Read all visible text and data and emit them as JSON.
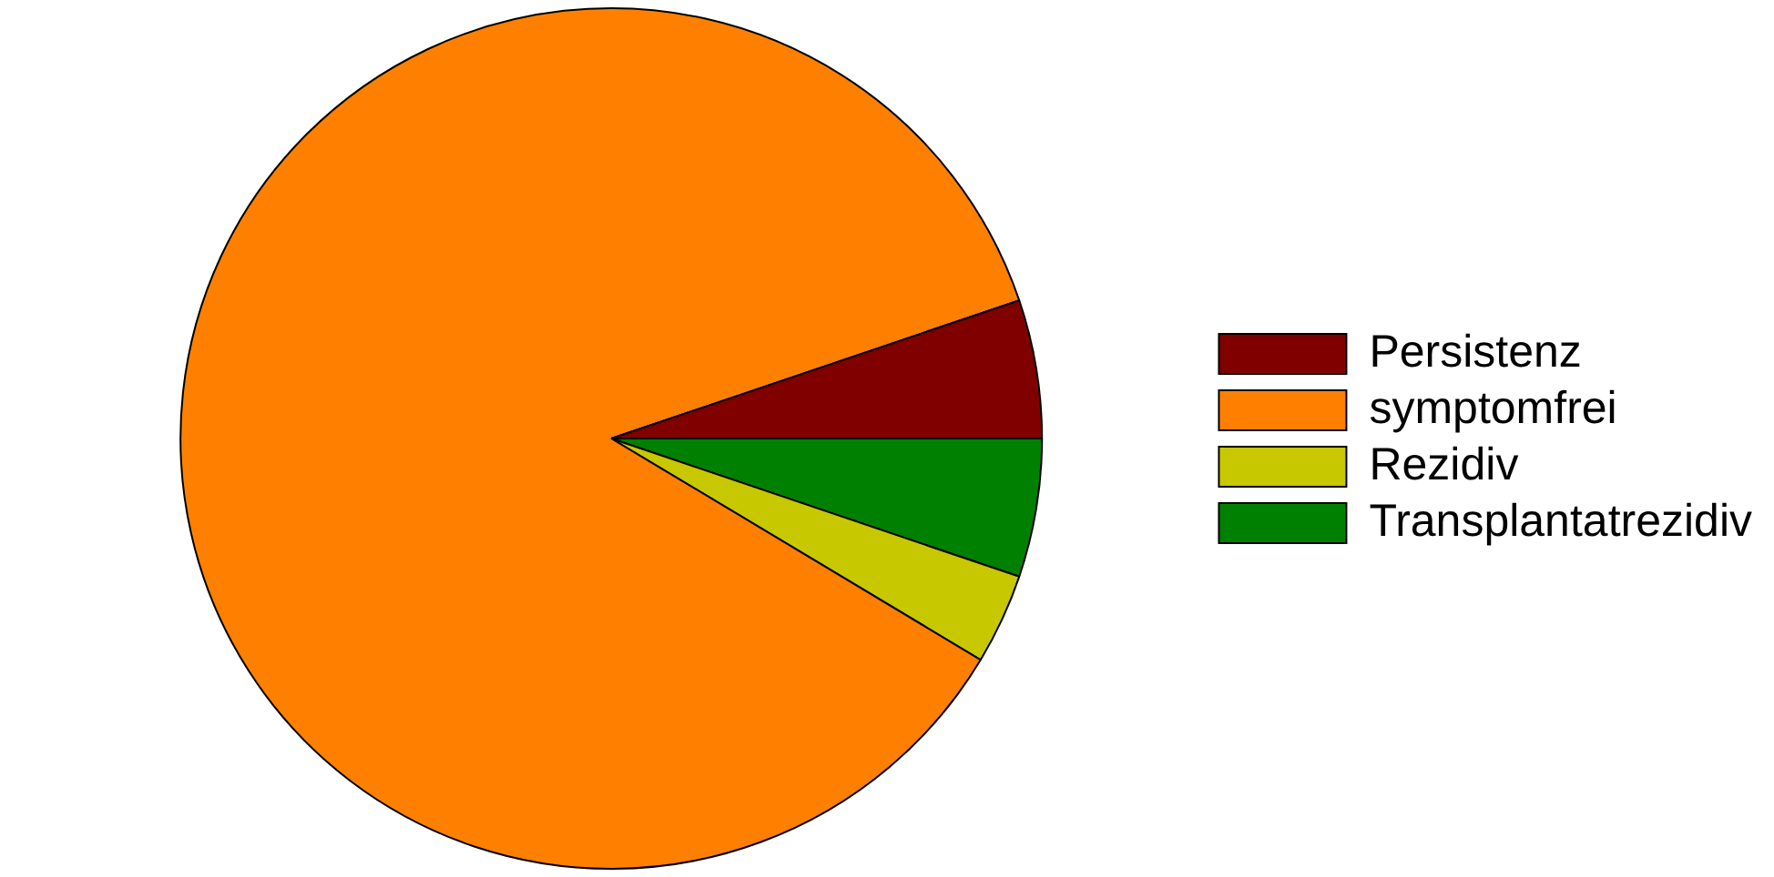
{
  "chart_data": {
    "type": "pie",
    "categories": [
      "Persistenz",
      "symptomfrei",
      "Rezidiv",
      "Transplantatrezidiv"
    ],
    "values": [
      5.2,
      86.2,
      3.4,
      5.2
    ],
    "colors": [
      "#800000",
      "#ff8000",
      "#c8c800",
      "#008000"
    ],
    "legend": "right"
  }
}
